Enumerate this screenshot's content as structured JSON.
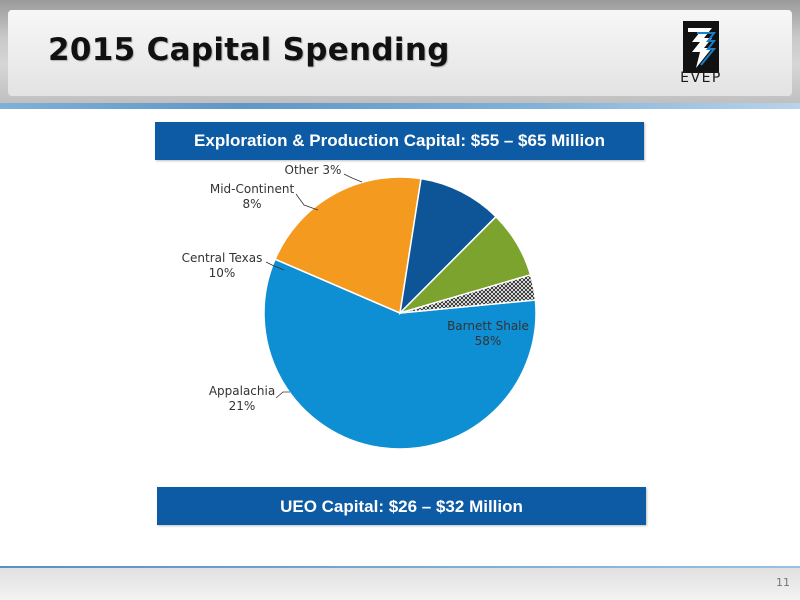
{
  "slide": {
    "title": "2015 Capital Spending",
    "logo_text": "EVEP",
    "page_number": "11"
  },
  "banners": {
    "ep": "Exploration & Production Capital: $55 – $65 Million",
    "ueo": "UEO Capital: $26 – $32 Million"
  },
  "colors": {
    "banner": "#0d5ba4",
    "barnett": "#0e8fd3",
    "appalachia": "#f39a1f",
    "central_texas": "#0d5596",
    "mid_continent": "#7da32f",
    "other": "#ffffff"
  },
  "chart_data": {
    "type": "pie",
    "title": "",
    "slices": [
      {
        "label": "Barnett Shale",
        "pct_label": "58%",
        "value": 58,
        "color": "#0e8fd3"
      },
      {
        "label": "Appalachia",
        "pct_label": "21%",
        "value": 21,
        "color": "#f39a1f"
      },
      {
        "label": "Central Texas",
        "pct_label": "10%",
        "value": 10,
        "color": "#0d5596"
      },
      {
        "label": "Mid-Continent",
        "pct_label": "8%",
        "value": 8,
        "color": "#7da32f"
      },
      {
        "label": "Other 3%",
        "pct_label": "",
        "value": 3,
        "color": "crosshatch"
      }
    ]
  }
}
